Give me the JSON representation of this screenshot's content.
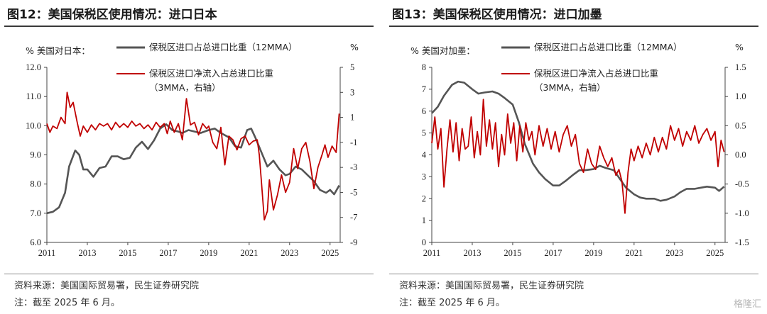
{
  "figures": [
    {
      "title": "图12：美国保税区使用情况：进口日本",
      "source": "资料来源：美国国际贸易署，民生证券研究院",
      "note": "注：截至 2025 年 6 月。"
    },
    {
      "title": "图13：美国保税区使用情况：进口加墨",
      "source": "资料来源：美国国际贸易署，民生证券研究院",
      "note": "注：截至 2025 年 6 月。"
    }
  ],
  "watermark": "格隆汇",
  "chart_data": [
    {
      "type": "line",
      "ylabel": "% 美国对日本：",
      "y2label": "%",
      "x_ticks": [
        "2011",
        "2013",
        "2015",
        "2017",
        "2019",
        "2021",
        "2023",
        "2025"
      ],
      "xlim": [
        2011.0,
        2025.5
      ],
      "ylim": [
        6.0,
        12.0
      ],
      "y_ticks": [
        "12.0",
        "11.0",
        "10.0",
        "9.0",
        "8.0",
        "7.0",
        "6.0"
      ],
      "y2lim": [
        -9,
        5
      ],
      "y2_ticks": [
        "5",
        "3",
        "1",
        "-1",
        "-3",
        "-5",
        "-7",
        "-9"
      ],
      "grid": false,
      "legend_position": "top",
      "series": [
        {
          "name": "保税区进口占总进口比重（12MMA）",
          "axis": "left",
          "color": "#555555",
          "x": [
            2011.0,
            2011.3,
            2011.6,
            2011.9,
            2012.1,
            2012.4,
            2012.6,
            2012.8,
            2013.0,
            2013.3,
            2013.6,
            2013.9,
            2014.2,
            2014.5,
            2014.8,
            2015.1,
            2015.4,
            2015.7,
            2016.0,
            2016.3,
            2016.6,
            2016.9,
            2017.2,
            2017.5,
            2017.7,
            2018.0,
            2018.3,
            2018.6,
            2019.0,
            2019.3,
            2019.6,
            2020.0,
            2020.3,
            2020.6,
            2020.9,
            2021.1,
            2021.3,
            2021.6,
            2021.9,
            2022.2,
            2022.5,
            2022.8,
            2023.0,
            2023.3,
            2023.6,
            2023.9,
            2024.2,
            2024.5,
            2024.8,
            2025.0,
            2025.2,
            2025.45
          ],
          "values": [
            7.0,
            7.05,
            7.2,
            7.7,
            8.6,
            9.15,
            9.0,
            8.5,
            8.5,
            8.25,
            8.55,
            8.6,
            8.95,
            8.95,
            8.85,
            8.9,
            9.25,
            9.45,
            9.2,
            9.5,
            9.9,
            10.05,
            9.85,
            9.8,
            9.75,
            9.85,
            9.8,
            9.75,
            9.85,
            9.9,
            9.75,
            9.6,
            9.3,
            9.25,
            9.85,
            9.9,
            9.6,
            9.1,
            8.6,
            8.8,
            8.5,
            8.3,
            8.35,
            8.6,
            8.5,
            8.3,
            8.1,
            7.8,
            7.7,
            7.8,
            7.65,
            7.95
          ]
        },
        {
          "name": "保税区进口净流入占总进口比重（3MMA，右轴）",
          "axis": "right",
          "color": "#c00000",
          "x": [
            2011.0,
            2011.15,
            2011.3,
            2011.5,
            2011.7,
            2011.9,
            2012.0,
            2012.15,
            2012.3,
            2012.5,
            2012.65,
            2012.8,
            2013.0,
            2013.2,
            2013.4,
            2013.6,
            2013.8,
            2014.0,
            2014.2,
            2014.4,
            2014.6,
            2014.8,
            2015.0,
            2015.2,
            2015.4,
            2015.6,
            2015.8,
            2016.0,
            2016.2,
            2016.4,
            2016.6,
            2016.8,
            2016.95,
            2017.1,
            2017.3,
            2017.5,
            2017.7,
            2017.9,
            2018.1,
            2018.3,
            2018.5,
            2018.7,
            2018.9,
            2019.0,
            2019.2,
            2019.4,
            2019.6,
            2019.8,
            2020.0,
            2020.2,
            2020.4,
            2020.6,
            2020.8,
            2021.0,
            2021.2,
            2021.4,
            2021.5,
            2021.6,
            2021.75,
            2021.9,
            2022.0,
            2022.2,
            2022.4,
            2022.6,
            2022.8,
            2023.0,
            2023.2,
            2023.4,
            2023.6,
            2023.8,
            2024.0,
            2024.2,
            2024.4,
            2024.6,
            2024.75,
            2024.9,
            2025.1,
            2025.3,
            2025.45
          ],
          "values": [
            0.5,
            -0.2,
            0.3,
            0.1,
            1.0,
            0.5,
            3.0,
            1.8,
            2.2,
            0.6,
            -0.5,
            0.3,
            -0.2,
            0.4,
            0.0,
            0.5,
            0.3,
            0.5,
            0.0,
            0.6,
            0.2,
            0.5,
            0.2,
            0.7,
            0.3,
            0.5,
            0.1,
            0.4,
            0.0,
            0.6,
            0.2,
            0.5,
            -0.3,
            0.7,
            -0.2,
            0.5,
            -0.8,
            2.5,
            0.4,
            0.6,
            -0.4,
            0.5,
            0.1,
            0.3,
            -1.0,
            -1.5,
            0.2,
            -2.8,
            -0.5,
            -0.8,
            -1.6,
            -0.7,
            -0.5,
            -1.2,
            -0.9,
            -0.8,
            -2.0,
            -4.0,
            -7.2,
            -6.5,
            -4.0,
            -6.4,
            -5.2,
            -3.6,
            -5.0,
            -4.2,
            -1.5,
            -3.1,
            -1.5,
            -1.0,
            -2.5,
            -4.7,
            -3.0,
            -2.0,
            -1.2,
            -2.2,
            -1.3,
            -1.8,
            1.3
          ]
        }
      ]
    },
    {
      "type": "line",
      "ylabel": "% 美国对加墨：",
      "y2label": "%",
      "x_ticks": [
        "2011",
        "2013",
        "2015",
        "2017",
        "2019",
        "2021",
        "2023",
        "2025"
      ],
      "xlim": [
        2011.0,
        2025.5
      ],
      "ylim": [
        0,
        8
      ],
      "y_ticks": [
        "8",
        "7",
        "6",
        "5",
        "4",
        "3",
        "2",
        "1",
        "0"
      ],
      "y2lim": [
        -1.5,
        1.5
      ],
      "y2_ticks": [
        "1.5",
        "1.0",
        "0.5",
        "0.0",
        "-0.5",
        "-1.0",
        "-1.5"
      ],
      "grid": false,
      "legend_position": "top",
      "series": [
        {
          "name": "保税区进口占总进口比重（12MMA）",
          "axis": "left",
          "color": "#555555",
          "x": [
            2011.0,
            2011.3,
            2011.6,
            2012.0,
            2012.3,
            2012.6,
            2013.0,
            2013.3,
            2013.6,
            2014.0,
            2014.3,
            2014.6,
            2015.0,
            2015.3,
            2015.6,
            2016.0,
            2016.3,
            2016.6,
            2017.0,
            2017.3,
            2017.6,
            2018.0,
            2018.3,
            2018.6,
            2019.0,
            2019.3,
            2019.6,
            2020.0,
            2020.3,
            2020.6,
            2021.0,
            2021.3,
            2021.6,
            2022.0,
            2022.3,
            2022.6,
            2023.0,
            2023.3,
            2023.6,
            2024.0,
            2024.3,
            2024.6,
            2025.0,
            2025.2,
            2025.45
          ],
          "values": [
            5.9,
            6.2,
            6.7,
            7.2,
            7.35,
            7.3,
            7.0,
            6.8,
            6.85,
            6.9,
            6.8,
            6.6,
            6.3,
            5.5,
            4.5,
            3.6,
            3.2,
            2.9,
            2.6,
            2.6,
            2.8,
            3.1,
            3.3,
            3.3,
            3.35,
            3.5,
            3.4,
            3.3,
            2.9,
            2.5,
            2.2,
            2.05,
            2.0,
            2.0,
            1.9,
            1.95,
            2.1,
            2.3,
            2.45,
            2.45,
            2.5,
            2.55,
            2.5,
            2.35,
            2.55
          ]
        },
        {
          "name": "保税区进口净流入占总进口比重（3MMA，右轴）",
          "axis": "right",
          "color": "#c00000",
          "x": [
            2011.0,
            2011.15,
            2011.3,
            2011.45,
            2011.6,
            2011.75,
            2011.9,
            2012.05,
            2012.2,
            2012.35,
            2012.5,
            2012.65,
            2012.8,
            2012.95,
            2013.1,
            2013.25,
            2013.4,
            2013.55,
            2013.7,
            2013.85,
            2014.0,
            2014.15,
            2014.3,
            2014.45,
            2014.6,
            2014.75,
            2014.9,
            2015.05,
            2015.2,
            2015.35,
            2015.5,
            2015.65,
            2015.8,
            2015.95,
            2016.1,
            2016.3,
            2016.5,
            2016.7,
            2016.9,
            2017.1,
            2017.3,
            2017.5,
            2017.7,
            2017.9,
            2018.1,
            2018.3,
            2018.5,
            2018.7,
            2018.9,
            2019.1,
            2019.3,
            2019.5,
            2019.7,
            2019.9,
            2020.1,
            2020.25,
            2020.4,
            2020.55,
            2020.7,
            2020.85,
            2021.0,
            2021.2,
            2021.4,
            2021.6,
            2021.8,
            2022.0,
            2022.2,
            2022.4,
            2022.6,
            2022.8,
            2023.0,
            2023.2,
            2023.4,
            2023.6,
            2023.8,
            2024.0,
            2024.2,
            2024.4,
            2024.6,
            2024.8,
            2025.0,
            2025.15,
            2025.3,
            2025.45
          ],
          "values": [
            0.2,
            0.65,
            0.1,
            0.45,
            -0.55,
            0.1,
            0.6,
            0.05,
            0.55,
            -0.1,
            0.45,
            0.1,
            0.15,
            0.65,
            -0.05,
            0.4,
            0.0,
            0.95,
            0.15,
            0.6,
            0.1,
            0.55,
            -0.2,
            0.35,
            0.0,
            0.7,
            0.2,
            0.55,
            -0.1,
            0.5,
            0.05,
            0.55,
            0.25,
            0.4,
            0.0,
            0.5,
            0.15,
            0.45,
            0.1,
            0.4,
            0.05,
            0.35,
            0.5,
            0.15,
            0.35,
            -0.15,
            -0.3,
            0.1,
            -0.15,
            -0.25,
            0.15,
            -0.05,
            -0.2,
            -0.05,
            -0.35,
            -0.25,
            -0.45,
            -1.0,
            -0.3,
            0.1,
            -0.1,
            0.15,
            -0.05,
            0.2,
            0.0,
            0.3,
            0.05,
            0.3,
            0.1,
            0.5,
            0.25,
            0.45,
            0.15,
            0.4,
            0.25,
            0.5,
            0.2,
            0.35,
            0.45,
            0.25,
            0.4,
            -0.2,
            0.25,
            0.05
          ]
        }
      ]
    }
  ]
}
